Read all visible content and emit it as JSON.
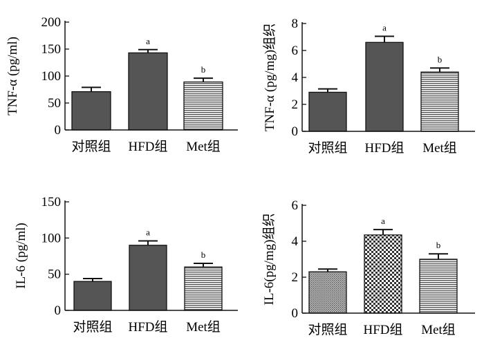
{
  "chart_data": [
    {
      "type": "bar",
      "ylabel": "TNF-α (pg/ml)",
      "categories": [
        "对照组",
        "HFD组",
        "Met组"
      ],
      "values": [
        71,
        143,
        89
      ],
      "errors": [
        8,
        6,
        7
      ],
      "annotations": [
        "",
        "a",
        "b"
      ],
      "ylim": [
        0,
        200
      ],
      "yticks": [
        "0",
        "50",
        "100",
        "150",
        "200"
      ],
      "fills": [
        "#555555",
        "#555555",
        "horizontal-lines"
      ]
    },
    {
      "type": "bar",
      "ylabel": "TNF-α (pg/mg)组织",
      "categories": [
        "对照组",
        "HFD组",
        "Met组"
      ],
      "values": [
        2.9,
        6.6,
        4.4
      ],
      "errors": [
        0.25,
        0.45,
        0.3
      ],
      "annotations": [
        "",
        "a",
        "b"
      ],
      "ylim": [
        0,
        8
      ],
      "yticks": [
        "0",
        "2",
        "4",
        "6",
        "8"
      ],
      "fills": [
        "#555555",
        "#555555",
        "horizontal-lines"
      ]
    },
    {
      "type": "bar",
      "ylabel": "IL-6 (pg/ml)",
      "categories": [
        "对照组",
        "HFD组",
        "Met组"
      ],
      "values": [
        40,
        90,
        60
      ],
      "errors": [
        4,
        6,
        5
      ],
      "annotations": [
        "",
        "a",
        "b"
      ],
      "ylim": [
        0,
        150
      ],
      "yticks": [
        "0",
        "50",
        "100",
        "150"
      ],
      "fills": [
        "#555555",
        "#555555",
        "horizontal-lines"
      ]
    },
    {
      "type": "bar",
      "ylabel": "IL-6(pg/mg)组织",
      "categories": [
        "对照组",
        "HFD组",
        "Met组"
      ],
      "values": [
        2.3,
        4.35,
        3.0
      ],
      "errors": [
        0.15,
        0.3,
        0.3
      ],
      "annotations": [
        "",
        "a",
        "b"
      ],
      "ylim": [
        0,
        6
      ],
      "yticks": [
        "0",
        "2",
        "4",
        "6"
      ],
      "fills": [
        "dots",
        "checker",
        "horizontal-lines"
      ]
    }
  ]
}
